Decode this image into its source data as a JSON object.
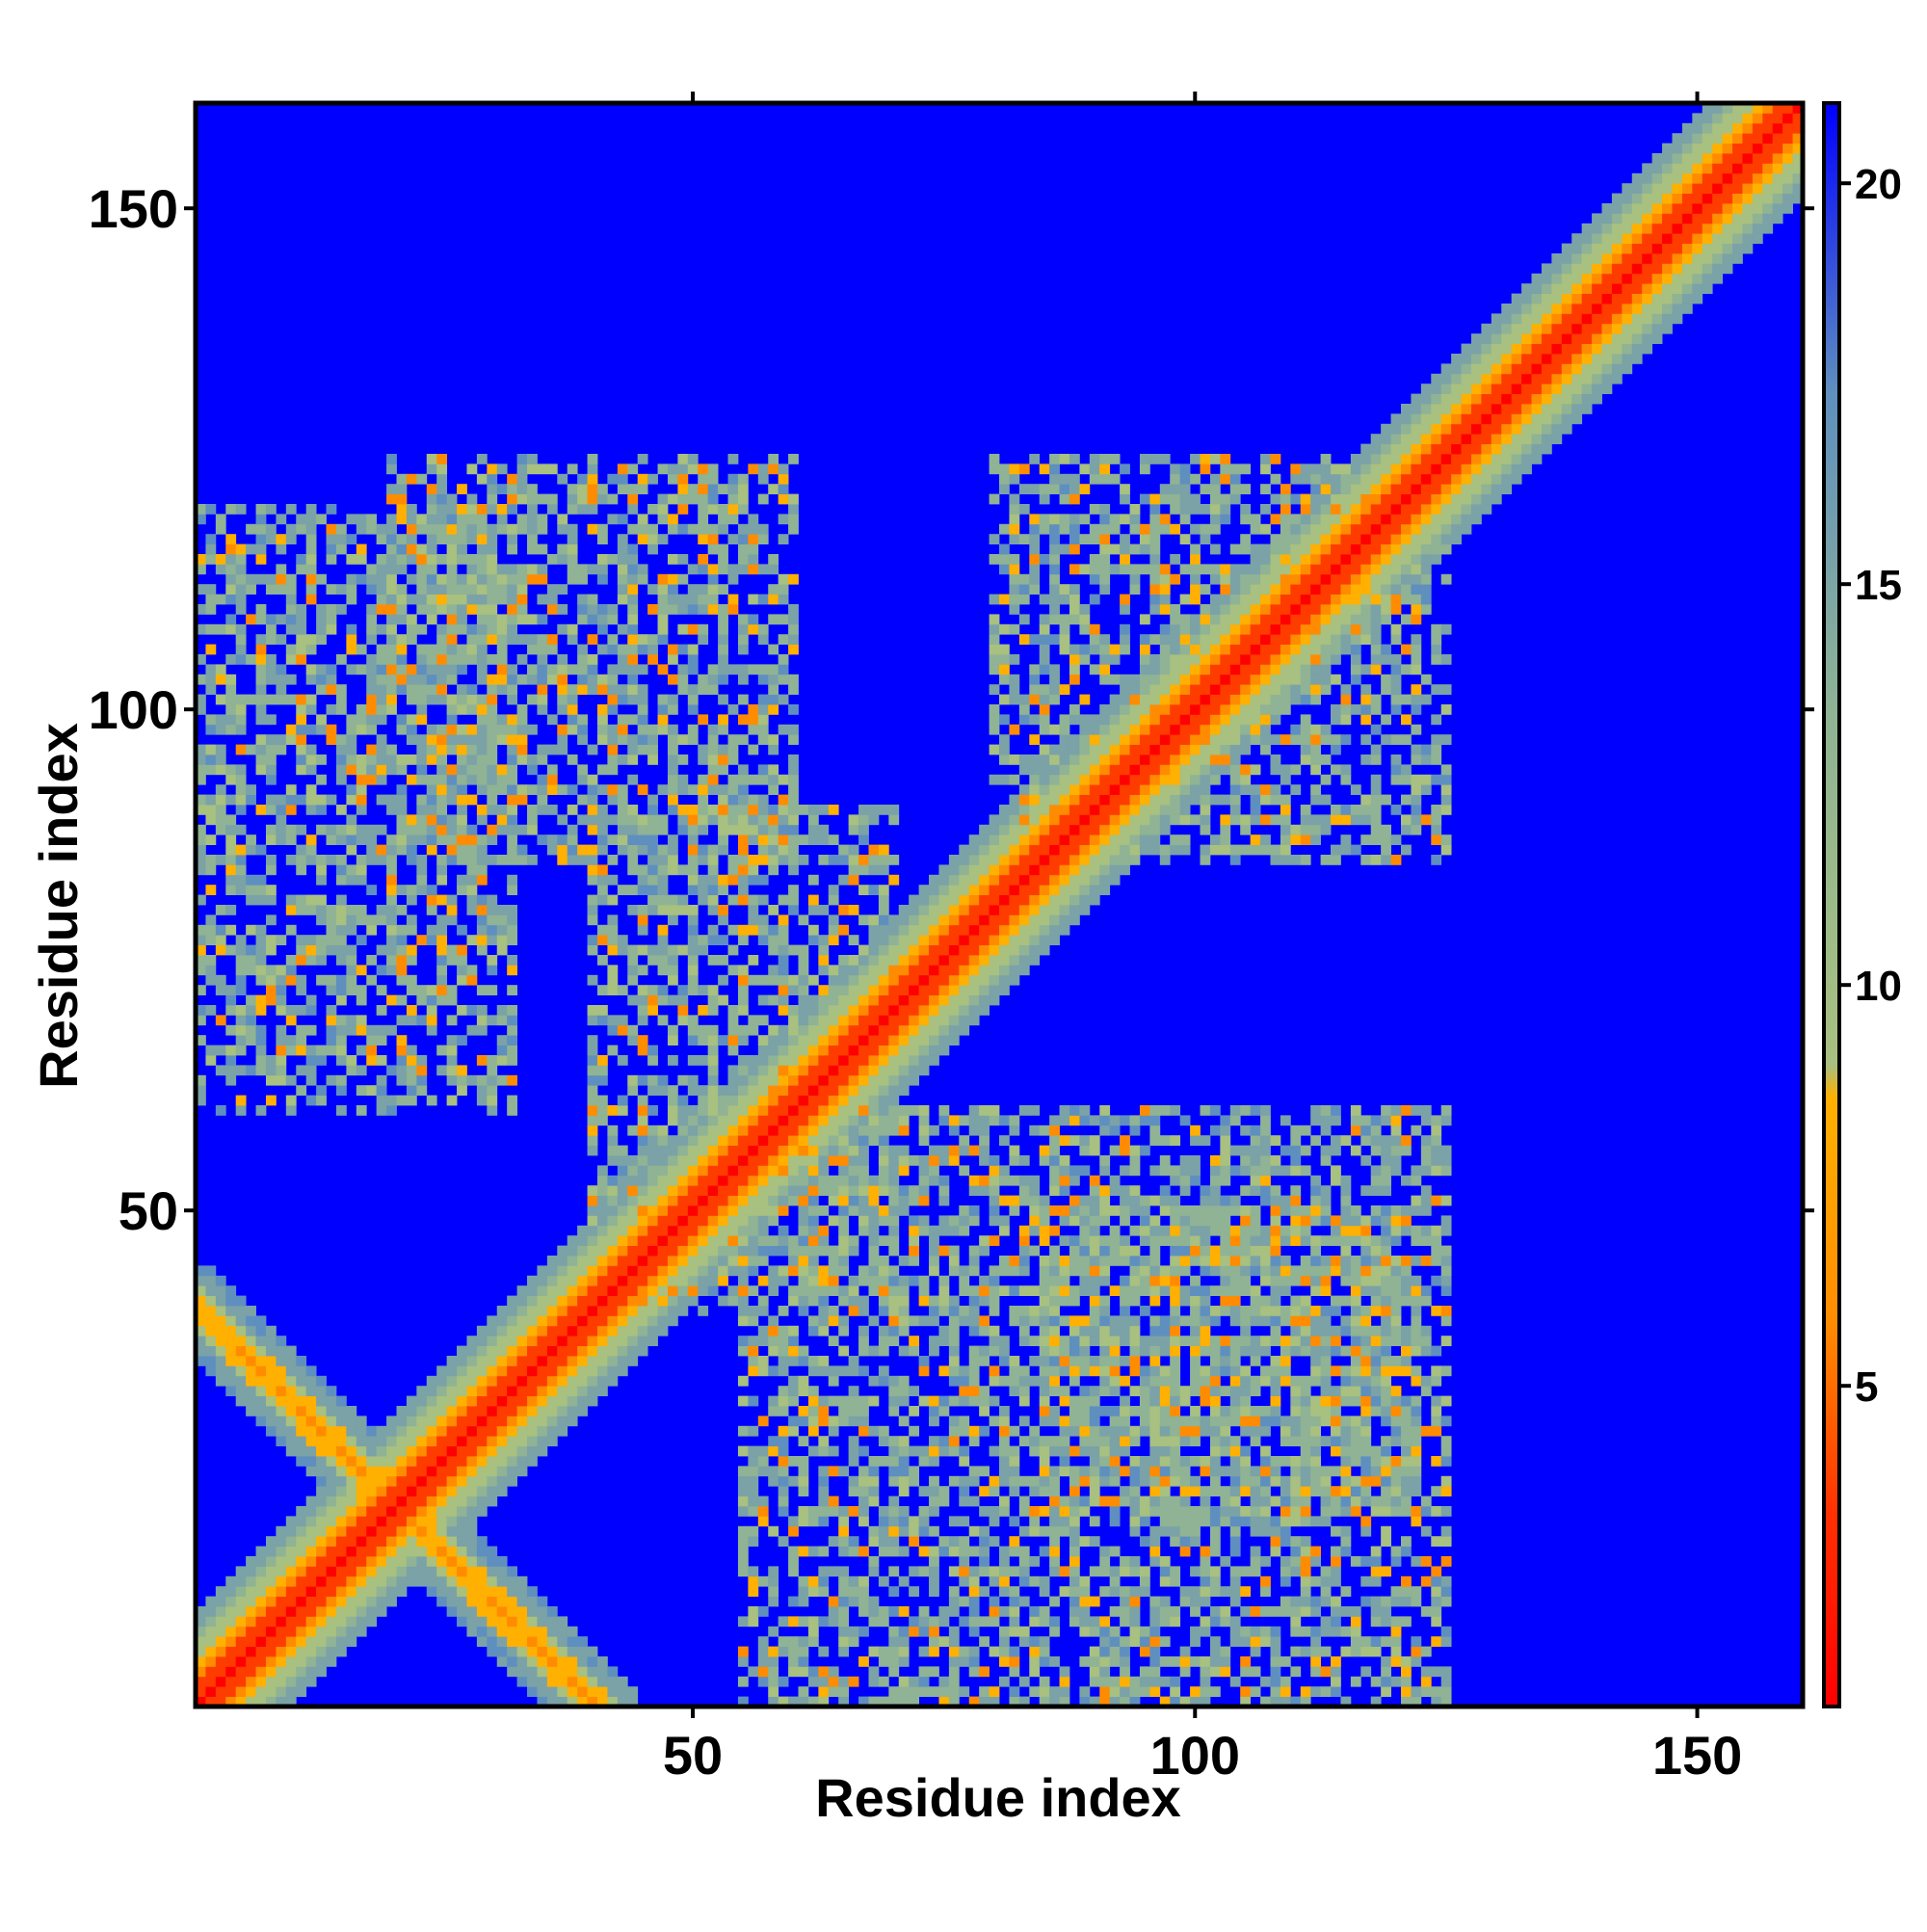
{
  "chart_data": {
    "type": "heatmap",
    "title": "",
    "xlabel": "Residue index",
    "ylabel": "Residue index",
    "xlim": [
      1,
      160
    ],
    "ylim": [
      1,
      160
    ],
    "x_ticks": [
      50,
      100,
      150
    ],
    "y_ticks": [
      50,
      100,
      150
    ],
    "x_tick_labels": [
      "50",
      "100",
      "150"
    ],
    "y_tick_labels": [
      "50",
      "100",
      "150"
    ],
    "n_residues": 160,
    "grid": false,
    "colorbar": {
      "placement": "right",
      "range": [
        1,
        21
      ],
      "ticks": [
        5,
        10,
        15,
        20
      ],
      "tick_labels": [
        "5",
        "10",
        "15",
        "20"
      ],
      "colors": [
        "#ff0000",
        "#ff8c00",
        "#9bbf8a",
        "#5f8fbf",
        "#0000ff"
      ]
    },
    "map_description_values": {
      "diagonal_value": 1,
      "background_value": 21
    },
    "contact_regions": [
      {
        "x": [
          1,
          40
        ],
        "y": [
          1,
          40
        ],
        "kind": "helix hairpin cross",
        "min_value": 4
      },
      {
        "x": [
          1,
          60
        ],
        "y": [
          55,
          120
        ],
        "kind": "off-diagonal cluster",
        "min_value": 6
      },
      {
        "x": [
          55,
          125
        ],
        "y": [
          1,
          60
        ],
        "kind": "off-diagonal cluster",
        "min_value": 6
      },
      {
        "x": [
          80,
          125
        ],
        "y": [
          85,
          125
        ],
        "kind": "off-diagonal cluster",
        "min_value": 6
      }
    ]
  }
}
